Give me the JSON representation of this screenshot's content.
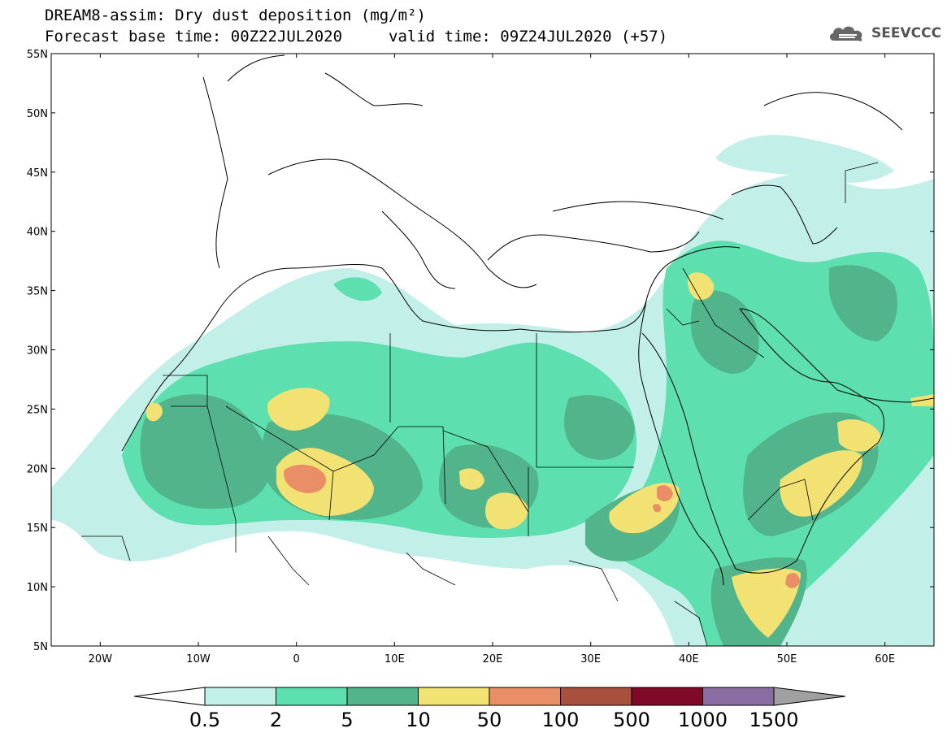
{
  "title": {
    "line1": "DREAM8-assim: Dry dust deposition (mg/m²)",
    "line2_left": "Forecast base time: 00Z22JUL2020",
    "line2_right": "valid time: 09Z24JUL2020 (+57)"
  },
  "logo": {
    "text": "SEEVCCC",
    "icon": "cloud-icon"
  },
  "map": {
    "lon_range": [
      -25,
      65
    ],
    "lat_range": [
      5,
      55
    ],
    "lat_ticks": [
      "55N",
      "50N",
      "45N",
      "40N",
      "35N",
      "30N",
      "25N",
      "20N",
      "15N",
      "10N",
      "5N"
    ],
    "lon_ticks": [
      "20W",
      "10W",
      "0",
      "10E",
      "20E",
      "30E",
      "40E",
      "50E",
      "60E"
    ]
  },
  "legend": {
    "labels": [
      "0.5",
      "2",
      "5",
      "10",
      "50",
      "100",
      "500",
      "1000",
      "1500"
    ],
    "colors": [
      "#c2f0e8",
      "#5ddfb0",
      "#52b48a",
      "#f2e173",
      "#e98e66",
      "#a8503e",
      "#7e0a28",
      "#8a6da3",
      "#a0a0a0"
    ],
    "under_color": "#ffffff"
  },
  "colors": {
    "land": "#ffffff",
    "border": "#000000"
  }
}
